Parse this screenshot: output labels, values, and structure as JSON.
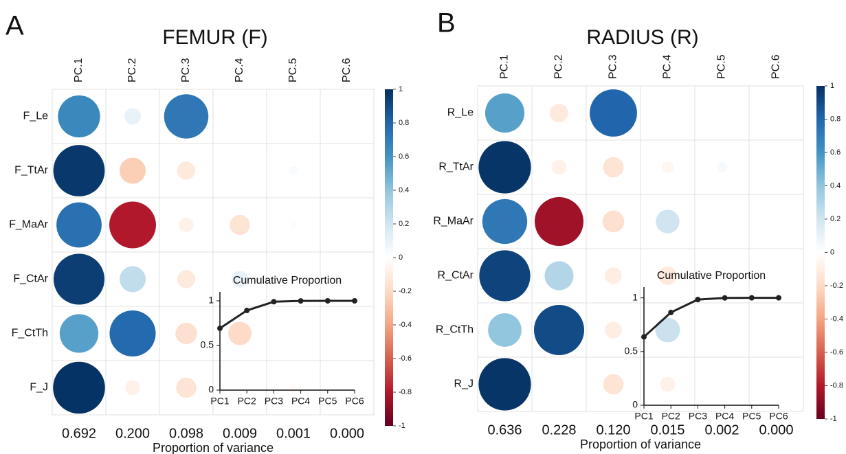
{
  "chart_data": [
    {
      "type": "corrplot",
      "panel": "A",
      "title": "FEMUR (F)",
      "columns": [
        "PC.1",
        "PC.2",
        "PC.3",
        "PC.4",
        "PC.5",
        "PC.6"
      ],
      "rows": [
        "F_Le",
        "F_TtAr",
        "F_MaAr",
        "F_CtAr",
        "F_CtTh",
        "F_J"
      ],
      "values": [
        [
          0.65,
          0.1,
          0.72,
          0.01,
          0,
          0
        ],
        [
          0.97,
          -0.25,
          -0.12,
          0.01,
          0.03,
          0.01
        ],
        [
          0.75,
          -0.8,
          -0.08,
          -0.15,
          0.02,
          0
        ],
        [
          0.95,
          0.25,
          -0.12,
          0.1,
          0,
          0
        ],
        [
          0.55,
          0.78,
          -0.17,
          -0.2,
          0,
          0
        ],
        [
          0.99,
          -0.08,
          -0.15,
          0,
          -0.03,
          0
        ]
      ],
      "clim": [
        -1,
        1
      ],
      "cticks": [
        1,
        0.8,
        0.6,
        0.4,
        0.2,
        0,
        -0.2,
        -0.4,
        -0.6,
        -0.8,
        -1
      ],
      "colormap": [
        "#67001f",
        "#b2182b",
        "#d6604d",
        "#f4a582",
        "#fddbc7",
        "#ffffff",
        "#d1e5f0",
        "#92c5de",
        "#4393c3",
        "#2166ac",
        "#053061"
      ],
      "variance": [
        {
          "value": 0.692,
          "label": "0.692"
        },
        {
          "value": 0.2,
          "label": "0.200"
        },
        {
          "value": 0.098,
          "label": "0.098"
        },
        {
          "value": 0.009,
          "label": "0.009"
        },
        {
          "value": 0.001,
          "label": "0.001"
        },
        {
          "value": 0,
          "label": "0.000"
        }
      ],
      "xlabel": "Proportion of variance",
      "inset": {
        "type": "line",
        "title": "Cumulative Proportion",
        "categories": [
          "PC1",
          "PC2",
          "PC3",
          "PC4",
          "PC5",
          "PC6"
        ],
        "values": [
          0.692,
          0.892,
          0.99,
          0.999,
          1,
          1
        ],
        "ylim": [
          0,
          1.1
        ],
        "yticks": [
          0,
          0.5,
          1
        ],
        "color": "#222222"
      }
    },
    {
      "type": "corrplot",
      "panel": "B",
      "title": "RADIUS (R)",
      "columns": [
        "PC.1",
        "PC.2",
        "PC.3",
        "PC.4",
        "PC.5",
        "PC.6"
      ],
      "rows": [
        "R_Le",
        "R_TtAr",
        "R_MaAr",
        "R_CtAr",
        "R_CtTh",
        "R_J"
      ],
      "values": [
        [
          0.55,
          -0.12,
          0.8,
          0.01,
          0,
          0
        ],
        [
          0.98,
          -0.08,
          -0.15,
          -0.05,
          0.04,
          0
        ],
        [
          0.72,
          -0.85,
          -0.17,
          0.2,
          0.01,
          0
        ],
        [
          0.93,
          0.3,
          -0.1,
          -0.12,
          0,
          0
        ],
        [
          0.4,
          0.9,
          -0.1,
          0.22,
          0.01,
          0
        ],
        [
          0.98,
          0.01,
          -0.15,
          -0.08,
          0,
          0
        ]
      ],
      "clim": [
        -1,
        1
      ],
      "cticks": [
        1,
        0.8,
        0.6,
        0.4,
        0.2,
        0,
        -0.2,
        -0.4,
        -0.6,
        -0.8,
        -1
      ],
      "colormap": [
        "#67001f",
        "#b2182b",
        "#d6604d",
        "#f4a582",
        "#fddbc7",
        "#ffffff",
        "#d1e5f0",
        "#92c5de",
        "#4393c3",
        "#2166ac",
        "#053061"
      ],
      "variance": [
        {
          "value": 0.636,
          "label": "0.636"
        },
        {
          "value": 0.228,
          "label": "0.228"
        },
        {
          "value": 0.12,
          "label": "0.120"
        },
        {
          "value": 0.015,
          "label": "0.015"
        },
        {
          "value": 0.002,
          "label": "0.002"
        },
        {
          "value": 0,
          "label": "0.000"
        }
      ],
      "xlabel": "Proportion of variance",
      "inset": {
        "type": "line",
        "title": "Cumulative Proportion",
        "categories": [
          "PC1",
          "PC2",
          "PC3",
          "PC4",
          "PC5",
          "PC6"
        ],
        "values": [
          0.636,
          0.864,
          0.984,
          0.999,
          1,
          1
        ],
        "ylim": [
          0,
          1.1
        ],
        "yticks": [
          0,
          0.5,
          1
        ],
        "color": "#222222"
      }
    }
  ]
}
